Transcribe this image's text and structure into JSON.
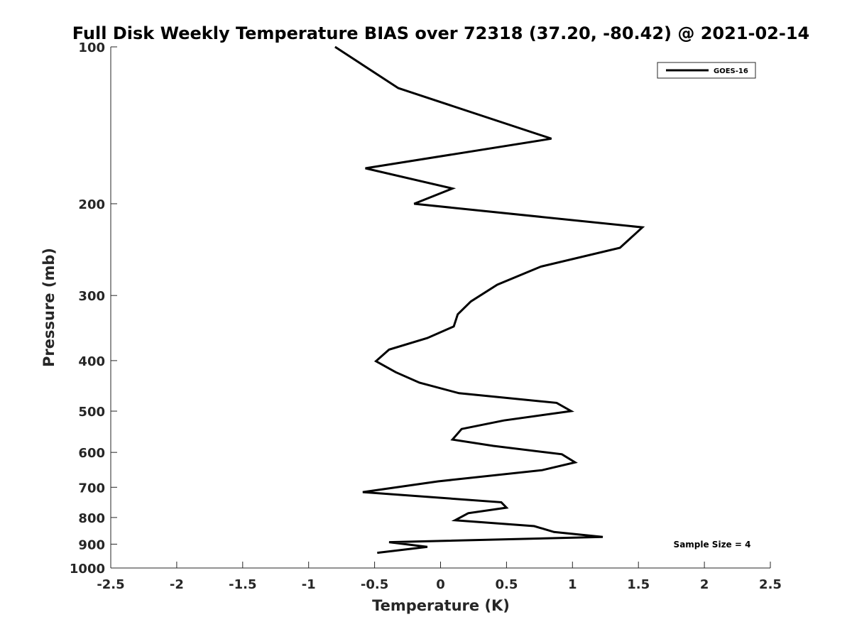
{
  "chart_data": {
    "type": "line",
    "title": "Full Disk Weekly Temperature BIAS over 72318 (37.20, -80.42) @ 2021-02-14",
    "xlabel": "Temperature (K)",
    "ylabel": "Pressure (mb)",
    "xlim": [
      -2.5,
      2.5
    ],
    "ylim": [
      100,
      1000
    ],
    "yscale": "log",
    "y_reversed": true,
    "x_ticks": [
      "-2.5",
      "-2",
      "-1.5",
      "-1",
      "-0.5",
      "0",
      "0.5",
      "1",
      "1.5",
      "2",
      "2.5"
    ],
    "x_tick_values": [
      -2.5,
      -2,
      -1.5,
      -1,
      -0.5,
      0,
      0.5,
      1,
      1.5,
      2,
      2.5
    ],
    "y_ticks": [
      "100",
      "200",
      "300",
      "400",
      "500",
      "600",
      "700",
      "800",
      "900",
      "1000"
    ],
    "y_tick_values": [
      100,
      200,
      300,
      400,
      500,
      600,
      700,
      800,
      900,
      1000
    ],
    "grid": false,
    "legend_position": "top-right",
    "line_color": "#000000",
    "series": [
      {
        "name": "GOES-16",
        "x": [
          -0.8,
          -0.32,
          0.84,
          -0.57,
          0.09,
          -0.2,
          1.53,
          1.36,
          0.76,
          0.43,
          0.23,
          0.13,
          0.1,
          -0.1,
          -0.39,
          -0.49,
          -0.34,
          -0.16,
          0.14,
          0.88,
          0.99,
          0.48,
          0.16,
          0.09,
          0.4,
          0.92,
          1.02,
          0.77,
          -0.02,
          -0.59,
          0.46,
          0.5,
          0.21,
          0.11,
          0.71,
          0.86,
          1.23,
          -0.39,
          -0.1,
          -0.48
        ],
        "y": [
          100,
          120,
          150,
          171,
          187,
          200,
          222,
          243,
          264,
          286,
          308,
          326,
          344,
          362,
          381,
          401,
          421,
          441,
          462,
          482,
          500,
          521,
          541,
          567,
          583,
          605,
          627,
          649,
          682,
          715,
          748,
          766,
          785,
          810,
          831,
          853,
          872,
          892,
          911,
          935
        ]
      }
    ],
    "annotations": [
      "Sample Size = 4"
    ]
  }
}
